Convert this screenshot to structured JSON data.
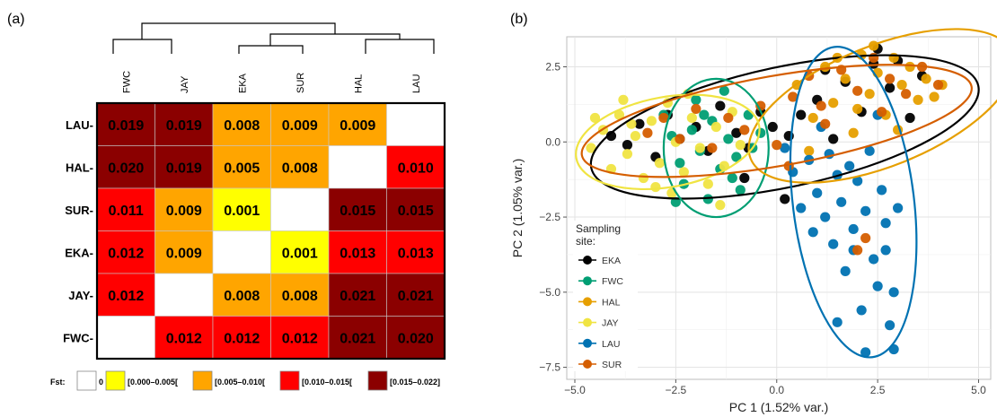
{
  "panel_a": {
    "label": "(a)",
    "columns": [
      "FWC",
      "JAY",
      "EKA",
      "SUR",
      "HAL",
      "LAU"
    ],
    "rows": [
      "LAU",
      "HAL",
      "SUR",
      "EKA",
      "JAY",
      "FWC"
    ],
    "cells": [
      [
        "0.019",
        "0.019",
        "0.008",
        "0.009",
        "0.009",
        ""
      ],
      [
        "0.020",
        "0.019",
        "0.005",
        "0.008",
        "",
        "0.010"
      ],
      [
        "0.011",
        "0.009",
        "0.001",
        "",
        "0.015",
        "0.015"
      ],
      [
        "0.012",
        "0.009",
        "",
        "0.001",
        "0.013",
        "0.013"
      ],
      [
        "0.012",
        "",
        "0.008",
        "0.008",
        "0.021",
        "0.021"
      ],
      [
        "",
        "0.012",
        "0.012",
        "0.012",
        "0.021",
        "0.020"
      ]
    ],
    "legend": {
      "title": "Fst:",
      "items": [
        {
          "label": "0",
          "color": "#ffffff"
        },
        {
          "label": "[0.000–0.005[",
          "color": "#ffff00"
        },
        {
          "label": "[0.005–0.010[",
          "color": "#ffa500"
        },
        {
          "label": "[0.010–0.015[",
          "color": "#ff0000"
        },
        {
          "label": "[0.015–0.022]",
          "color": "#8b0000"
        }
      ]
    }
  },
  "panel_b": {
    "label": "(b)",
    "xlabel": "PC 1 (1.52% var.)",
    "ylabel": "PC 2 (1.05% var.)",
    "legend_title": "Sampling site:",
    "sites": [
      {
        "name": "EKA",
        "color": "#000000"
      },
      {
        "name": "FWC",
        "color": "#009e73"
      },
      {
        "name": "HAL",
        "color": "#e69f00"
      },
      {
        "name": "JAY",
        "color": "#f0e442"
      },
      {
        "name": "LAU",
        "color": "#0072b2"
      },
      {
        "name": "SUR",
        "color": "#d55e00"
      }
    ]
  },
  "chart_data": [
    {
      "type": "heatmap",
      "title": "",
      "x": [
        "FWC",
        "JAY",
        "EKA",
        "SUR",
        "HAL",
        "LAU"
      ],
      "y": [
        "LAU",
        "HAL",
        "SUR",
        "EKA",
        "JAY",
        "FWC"
      ],
      "values": [
        [
          0.019,
          0.019,
          0.008,
          0.009,
          0.009,
          0
        ],
        [
          0.02,
          0.019,
          0.005,
          0.008,
          0,
          0.01
        ],
        [
          0.011,
          0.009,
          0.001,
          0,
          0.015,
          0.015
        ],
        [
          0.012,
          0.009,
          0,
          0.001,
          0.013,
          0.013
        ],
        [
          0.012,
          0,
          0.008,
          0.008,
          0.021,
          0.021
        ],
        [
          0,
          0.012,
          0.012,
          0.012,
          0.021,
          0.02
        ]
      ],
      "colors": [
        "#ffffff",
        "#ffff00",
        "#ffa500",
        "#ff0000",
        "#8b0000"
      ],
      "legend_title": "Fst:",
      "legend_labels": [
        "0",
        "[0.000–0.005[",
        "[0.005–0.010[",
        "[0.010–0.015[",
        "[0.015–0.022]"
      ],
      "dendrogram": "top"
    },
    {
      "type": "scatter",
      "title": "",
      "xlabel": "PC 1 (1.52% var.)",
      "ylabel": "PC 2 (1.05% var.)",
      "xlim": [
        -5.2,
        5.3
      ],
      "ylim": [
        -7.9,
        3.5
      ],
      "xticks": [
        -5.0,
        -2.5,
        0.0,
        2.5,
        5.0
      ],
      "xtick_labels": [
        "−5.0",
        "−2.5",
        "0.0",
        "2.5",
        "5.0"
      ],
      "yticks": [
        -7.5,
        -5.0,
        -2.5,
        0.0,
        2.5
      ],
      "ytick_labels": [
        "−7.5",
        "−5.0",
        "−2.5",
        "0.0",
        "2.5"
      ],
      "grid": true,
      "legend_title": "Sampling site:",
      "legend_position": "bottom-left",
      "series": [
        {
          "name": "EKA",
          "color": "#000000",
          "ellipse": {
            "cx": 0.2,
            "cy": 0.5,
            "rx": 4.9,
            "ry": 2.0,
            "angle_deg": 12
          },
          "points": [
            [
              -4.1,
              0.2
            ],
            [
              -3.7,
              -0.1
            ],
            [
              -3.4,
              0.6
            ],
            [
              -3.0,
              -0.5
            ],
            [
              -2.7,
              0.9
            ],
            [
              -2.4,
              0.1
            ],
            [
              -2.0,
              0.5
            ],
            [
              -1.7,
              -0.3
            ],
            [
              -1.4,
              1.2
            ],
            [
              -1.0,
              0.3
            ],
            [
              -0.7,
              -0.2
            ],
            [
              -0.4,
              1.0
            ],
            [
              -0.1,
              0.5
            ],
            [
              0.3,
              0.2
            ],
            [
              0.6,
              0.9
            ],
            [
              1.0,
              1.4
            ],
            [
              1.4,
              0.1
            ],
            [
              1.7,
              2.0
            ],
            [
              2.1,
              1.0
            ],
            [
              2.4,
              2.6
            ],
            [
              2.8,
              1.8
            ],
            [
              3.0,
              2.7
            ],
            [
              3.3,
              0.8
            ],
            [
              3.6,
              2.2
            ],
            [
              0.2,
              -1.9
            ],
            [
              -0.8,
              -1.2
            ],
            [
              2.5,
              3.1
            ],
            [
              1.2,
              2.4
            ]
          ]
        },
        {
          "name": "FWC",
          "color": "#009e73",
          "ellipse": {
            "cx": -1.5,
            "cy": -0.2,
            "rx": 1.3,
            "ry": 2.3,
            "angle_deg": 0
          },
          "points": [
            [
              -2.8,
              0.9
            ],
            [
              -2.6,
              0.2
            ],
            [
              -2.4,
              -0.7
            ],
            [
              -2.3,
              -1.4
            ],
            [
              -2.1,
              0.4
            ],
            [
              -2.0,
              1.4
            ],
            [
              -1.9,
              -0.3
            ],
            [
              -1.7,
              -1.9
            ],
            [
              -1.6,
              0.7
            ],
            [
              -1.4,
              -0.9
            ],
            [
              -1.3,
              1.7
            ],
            [
              -1.2,
              0.1
            ],
            [
              -1.0,
              -0.5
            ],
            [
              -0.9,
              -1.6
            ],
            [
              -0.7,
              0.9
            ],
            [
              -0.6,
              -0.2
            ],
            [
              -2.5,
              -2.0
            ],
            [
              -1.1,
              -1.2
            ],
            [
              -0.4,
              0.3
            ],
            [
              -1.8,
              0.9
            ]
          ]
        },
        {
          "name": "HAL",
          "color": "#e69f00",
          "ellipse": {
            "cx": 2.6,
            "cy": 1.2,
            "rx": 3.5,
            "ry": 2.0,
            "angle_deg": 22
          },
          "points": [
            [
              0.5,
              1.9
            ],
            [
              0.9,
              0.8
            ],
            [
              1.2,
              2.5
            ],
            [
              1.4,
              1.3
            ],
            [
              1.7,
              2.1
            ],
            [
              1.9,
              0.3
            ],
            [
              2.1,
              2.9
            ],
            [
              2.3,
              1.6
            ],
            [
              2.5,
              2.3
            ],
            [
              2.7,
              0.9
            ],
            [
              2.9,
              2.8
            ],
            [
              3.1,
              1.9
            ],
            [
              3.3,
              2.5
            ],
            [
              3.5,
              1.4
            ],
            [
              3.7,
              2.1
            ],
            [
              3.9,
              1.5
            ],
            [
              4.1,
              1.9
            ],
            [
              2.4,
              3.2
            ],
            [
              1.5,
              2.8
            ],
            [
              0.8,
              -0.3
            ],
            [
              3.0,
              0.4
            ],
            [
              2.0,
              1.1
            ]
          ]
        },
        {
          "name": "JAY",
          "color": "#f0e442",
          "ellipse": {
            "cx": -2.7,
            "cy": 0.0,
            "rx": 2.3,
            "ry": 1.5,
            "angle_deg": 10
          },
          "points": [
            [
              -4.6,
              -0.2
            ],
            [
              -4.3,
              0.4
            ],
            [
              -4.1,
              -0.9
            ],
            [
              -3.9,
              0.9
            ],
            [
              -3.7,
              -0.4
            ],
            [
              -3.5,
              0.2
            ],
            [
              -3.3,
              -1.2
            ],
            [
              -3.1,
              0.7
            ],
            [
              -2.9,
              -0.7
            ],
            [
              -2.7,
              1.3
            ],
            [
              -2.5,
              0.0
            ],
            [
              -2.3,
              -1.0
            ],
            [
              -2.1,
              0.8
            ],
            [
              -1.9,
              -0.2
            ],
            [
              -1.7,
              -1.4
            ],
            [
              -1.5,
              0.5
            ],
            [
              -1.3,
              -0.8
            ],
            [
              -1.1,
              1.0
            ],
            [
              -0.9,
              -0.1
            ],
            [
              -3.8,
              1.4
            ],
            [
              -3.0,
              -1.5
            ],
            [
              -2.2,
              1.6
            ],
            [
              -4.5,
              0.8
            ],
            [
              -1.4,
              -2.1
            ],
            [
              -2.6,
              -1.7
            ],
            [
              -3.6,
              0.6
            ]
          ]
        },
        {
          "name": "LAU",
          "color": "#0072b2",
          "ellipse": {
            "cx": 1.9,
            "cy": -2.0,
            "rx": 1.5,
            "ry": 5.2,
            "angle_deg": 7
          },
          "points": [
            [
              0.4,
              -1.0
            ],
            [
              0.6,
              -2.2
            ],
            [
              0.8,
              -0.6
            ],
            [
              0.9,
              -3.0
            ],
            [
              1.0,
              -1.7
            ],
            [
              1.2,
              -2.5
            ],
            [
              1.3,
              -0.4
            ],
            [
              1.4,
              -3.4
            ],
            [
              1.5,
              -1.1
            ],
            [
              1.6,
              -2.0
            ],
            [
              1.7,
              -4.3
            ],
            [
              1.8,
              -0.8
            ],
            [
              1.9,
              -2.9
            ],
            [
              2.0,
              -1.3
            ],
            [
              2.1,
              -5.6
            ],
            [
              2.2,
              -2.3
            ],
            [
              2.3,
              -0.3
            ],
            [
              2.4,
              -3.9
            ],
            [
              2.5,
              -4.8
            ],
            [
              2.6,
              -1.6
            ],
            [
              2.7,
              -2.7
            ],
            [
              2.8,
              -6.1
            ],
            [
              2.9,
              -5.0
            ],
            [
              3.0,
              -2.2
            ],
            [
              1.5,
              -6.0
            ],
            [
              2.2,
              -7.0
            ],
            [
              1.1,
              0.5
            ],
            [
              2.5,
              0.9
            ],
            [
              0.2,
              -0.2
            ],
            [
              1.9,
              -3.6
            ],
            [
              2.9,
              -6.9
            ],
            [
              2.7,
              -3.6
            ]
          ]
        },
        {
          "name": "SUR",
          "color": "#d55e00",
          "ellipse": {
            "cx": 0.0,
            "cy": 0.7,
            "rx": 4.9,
            "ry": 1.5,
            "angle_deg": 10
          },
          "points": [
            [
              -3.2,
              0.3
            ],
            [
              -2.8,
              0.8
            ],
            [
              -2.4,
              0.1
            ],
            [
              -2.0,
              1.1
            ],
            [
              -1.6,
              -0.2
            ],
            [
              -1.2,
              0.8
            ],
            [
              -0.8,
              0.4
            ],
            [
              -0.4,
              1.2
            ],
            [
              0.0,
              -0.1
            ],
            [
              0.4,
              1.5
            ],
            [
              0.8,
              2.2
            ],
            [
              1.2,
              0.6
            ],
            [
              1.6,
              2.4
            ],
            [
              2.0,
              1.7
            ],
            [
              2.4,
              2.8
            ],
            [
              2.8,
              2.1
            ],
            [
              3.2,
              1.6
            ],
            [
              3.6,
              2.5
            ],
            [
              4.0,
              1.9
            ],
            [
              1.1,
              1.2
            ],
            [
              2.2,
              -3.2
            ],
            [
              2.0,
              -3.6
            ],
            [
              0.3,
              -0.8
            ],
            [
              2.6,
              1.0
            ]
          ]
        }
      ]
    }
  ]
}
